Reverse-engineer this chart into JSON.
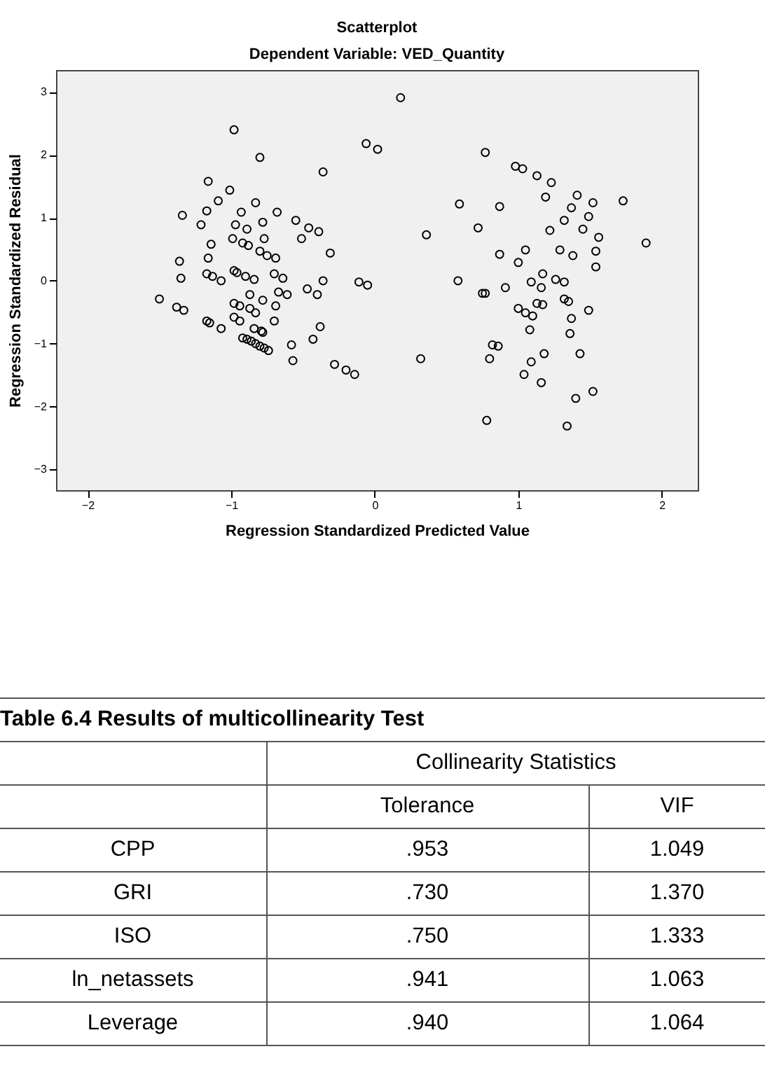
{
  "chart_data": [
    {
      "type": "scatter",
      "title": "Scatterplot",
      "subtitle": "Dependent Variable: VED_Quantity",
      "xlabel": "Regression Standardized Predicted Value",
      "ylabel": "Regression Standardized Residual",
      "marker": "circle",
      "grid": false,
      "xlim": [
        -2.22,
        2.25
      ],
      "ylim": [
        -3.33,
        3.35
      ],
      "xticks": [
        -2,
        -1,
        0,
        1,
        2
      ],
      "yticks": [
        -3,
        -2,
        -1,
        0,
        1,
        2,
        3
      ],
      "series": [
        {
          "color": "#000000",
          "x": [
            -0.98,
            -0.8,
            -1.16,
            -1.01,
            -1.09,
            -0.83,
            -1.34,
            -1.17,
            -0.93,
            -0.68,
            -1.21,
            -0.97,
            -0.89,
            -0.78,
            -0.55,
            -0.46,
            -0.39,
            -0.51,
            -0.99,
            -0.92,
            -0.88,
            -0.77,
            -1.14,
            -1.16,
            -1.36,
            -0.8,
            -0.75,
            -0.69,
            -0.31,
            -0.36,
            -0.06,
            0.02,
            0.18,
            -1.35,
            -1.17,
            -1.13,
            -1.07,
            -0.98,
            -0.96,
            -0.9,
            -0.84,
            -0.7,
            -0.64,
            -0.36,
            -0.11,
            -0.05,
            -1.5,
            -1.38,
            -1.33,
            -0.87,
            -0.78,
            -0.69,
            -0.67,
            -0.61,
            -0.47,
            -0.4,
            -0.98,
            -0.94,
            -0.87,
            -0.83,
            -1.17,
            -1.15,
            -1.07,
            -0.98,
            -0.94,
            -0.7,
            -0.84,
            -0.79,
            -0.78,
            -0.92,
            -0.89,
            -0.86,
            -0.83,
            -0.8,
            -0.77,
            -0.74,
            -0.38,
            -0.43,
            -0.58,
            -0.57,
            -0.28,
            -0.2,
            -0.14,
            0.77,
            0.98,
            1.03,
            1.13,
            1.23,
            1.19,
            1.41,
            1.52,
            1.73,
            0.59,
            0.87,
            1.37,
            1.49,
            1.32,
            0.72,
            1.22,
            1.45,
            1.56,
            0.36,
            1.89,
            0.87,
            1.05,
            1.29,
            1.38,
            1.54,
            1.0,
            1.54,
            1.17,
            0.58,
            1.09,
            1.26,
            1.32,
            0.77,
            0.75,
            0.91,
            1.16,
            1.13,
            1.17,
            1.0,
            1.05,
            1.1,
            1.32,
            1.35,
            1.49,
            1.37,
            1.08,
            1.36,
            0.82,
            0.86,
            0.32,
            0.8,
            1.09,
            1.18,
            1.43,
            1.04,
            1.16,
            1.4,
            1.52,
            0.78,
            1.34
          ],
          "values": [
            2.4,
            1.96,
            1.58,
            1.44,
            1.27,
            1.24,
            1.04,
            1.11,
            1.09,
            1.09,
            0.89,
            0.89,
            0.82,
            0.93,
            0.96,
            0.84,
            0.78,
            0.67,
            0.67,
            0.6,
            0.56,
            0.67,
            0.58,
            0.36,
            0.31,
            0.47,
            0.4,
            0.36,
            0.44,
            1.73,
            2.18,
            2.09,
            2.91,
            0.04,
            0.11,
            0.07,
            0.0,
            0.16,
            0.13,
            0.07,
            0.02,
            0.11,
            0.04,
            0.0,
            -0.02,
            -0.07,
            -0.29,
            -0.42,
            -0.47,
            -0.22,
            -0.31,
            -0.4,
            -0.18,
            -0.22,
            -0.13,
            -0.22,
            -0.36,
            -0.4,
            -0.44,
            -0.51,
            -0.64,
            -0.67,
            -0.76,
            -0.58,
            -0.64,
            -0.64,
            -0.76,
            -0.8,
            -0.82,
            -0.91,
            -0.93,
            -0.96,
            -1.0,
            -1.04,
            -1.07,
            -1.11,
            -0.73,
            -0.93,
            -1.02,
            -1.27,
            -1.33,
            -1.42,
            -1.49,
            2.04,
            1.82,
            1.78,
            1.67,
            1.56,
            1.33,
            1.36,
            1.24,
            1.27,
            1.22,
            1.18,
            1.16,
            1.02,
            0.96,
            0.84,
            0.8,
            0.82,
            0.69,
            0.73,
            0.6,
            0.42,
            0.49,
            0.49,
            0.4,
            0.47,
            0.29,
            0.22,
            0.11,
            0.0,
            -0.02,
            0.02,
            -0.02,
            -0.2,
            -0.2,
            -0.11,
            -0.11,
            -0.36,
            -0.38,
            -0.44,
            -0.51,
            -0.56,
            -0.29,
            -0.33,
            -0.47,
            -0.6,
            -0.78,
            -0.84,
            -1.02,
            -1.04,
            -1.24,
            -1.24,
            -1.29,
            -1.16,
            -1.16,
            -1.49,
            -1.62,
            -1.87,
            -1.76,
            -2.22,
            -2.31
          ]
        }
      ]
    },
    {
      "type": "other",
      "title": "Table 6.4 Results of multicollinearity Test",
      "annotations": [
        "Collinearity Statistics",
        "Tolerance",
        "VIF",
        "CPP",
        ".953",
        "1.049",
        "GRI",
        ".730",
        "1.370",
        "ISO",
        ".750",
        "1.333",
        "ln_netassets",
        ".941",
        "1.063",
        "Leverage",
        ".940",
        "1.064"
      ]
    }
  ]
}
